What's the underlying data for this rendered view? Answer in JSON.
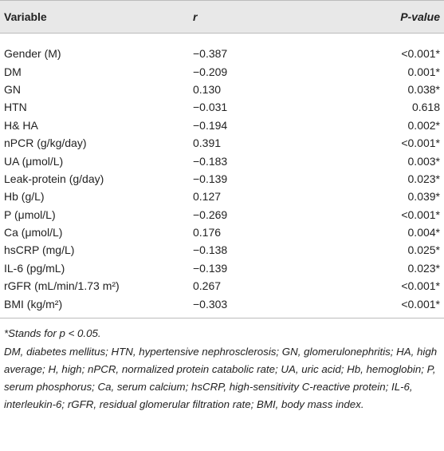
{
  "table": {
    "header": [
      "Variable",
      "r",
      "P-value"
    ],
    "rows": [
      [
        "Gender (M)",
        "−0.387",
        "<0.001*"
      ],
      [
        "DM",
        "−0.209",
        "0.001*"
      ],
      [
        "GN",
        "0.130",
        "0.038*"
      ],
      [
        "HTN",
        "−0.031",
        "0.618"
      ],
      [
        "H& HA",
        "−0.194",
        "0.002*"
      ],
      [
        "nPCR (g/kg/day)",
        "0.391",
        "<0.001*"
      ],
      [
        "UA (μmol/L)",
        "−0.183",
        "0.003*"
      ],
      [
        "Leak-protein (g/day)",
        "−0.139",
        "0.023*"
      ],
      [
        "Hb (g/L)",
        "0.127",
        "0.039*"
      ],
      [
        "P (μmol/L)",
        "−0.269",
        "<0.001*"
      ],
      [
        "Ca (μmol/L)",
        "0.176",
        "0.004*"
      ],
      [
        "hsCRP (mg/L)",
        "−0.138",
        "0.025*"
      ],
      [
        "IL-6 (pg/mL)",
        "−0.139",
        "0.023*"
      ],
      [
        "rGFR (mL/min/1.73 m²)",
        "0.267",
        "<0.001*"
      ],
      [
        "BMI (kg/m²)",
        "−0.303",
        "<0.001*"
      ]
    ]
  },
  "footnotes": [
    "*Stands for p < 0.05.",
    "DM, diabetes mellitus; HTN, hypertensive nephrosclerosis; GN, glomerulonephritis; HA, high average; H, high; nPCR, normalized protein catabolic rate; UA, uric acid; Hb, hemoglobin; P, serum phosphorus; Ca, serum calcium; hsCRP, high-sensitivity C-reactive protein; IL-6, interleukin-6; rGFR, residual glomerular filtration rate; BMI, body mass index."
  ]
}
